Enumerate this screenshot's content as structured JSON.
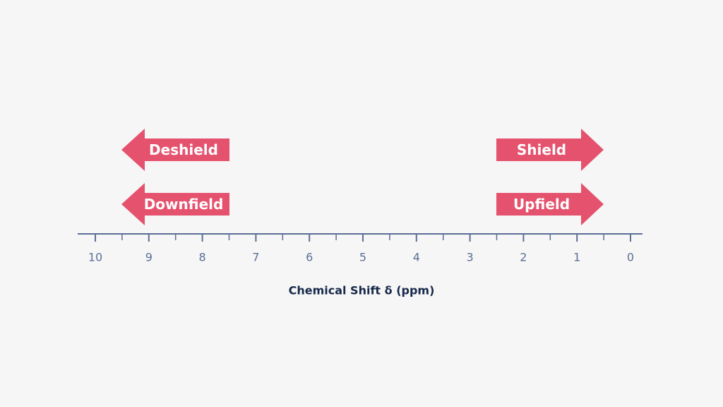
{
  "arrows": {
    "left": [
      "Deshield",
      "Downfield"
    ],
    "right": [
      "Shield",
      "Upfield"
    ]
  },
  "axis": {
    "ticks": [
      "10",
      "9",
      "8",
      "7",
      "6",
      "5",
      "4",
      "3",
      "2",
      "1",
      "0"
    ],
    "title": "Chemical Shift δ (ppm)"
  }
}
